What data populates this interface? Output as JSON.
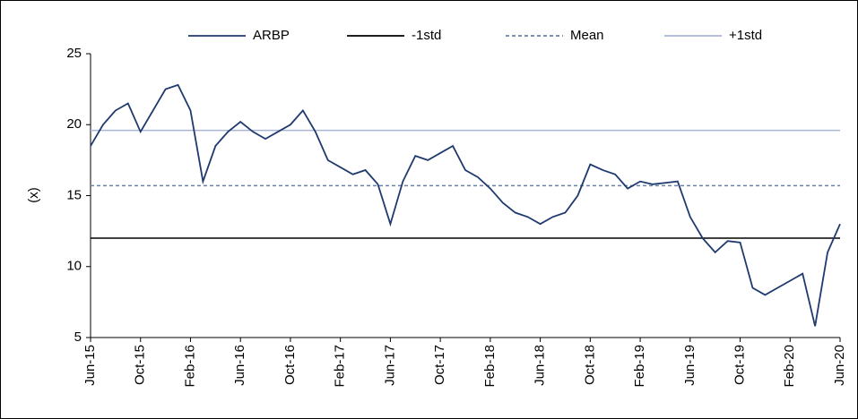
{
  "chart_data": {
    "type": "line",
    "y_label": "(x)",
    "categories": [
      "Jun-15",
      null,
      null,
      null,
      "Oct-15",
      null,
      null,
      null,
      "Feb-16",
      null,
      null,
      null,
      "Jun-16",
      null,
      null,
      null,
      "Oct-16",
      null,
      null,
      null,
      "Feb-17",
      null,
      null,
      null,
      "Jun-17",
      null,
      null,
      null,
      "Oct-17",
      null,
      null,
      null,
      "Feb-18",
      null,
      null,
      null,
      "Jun-18",
      null,
      null,
      null,
      "Oct-18",
      null,
      null,
      null,
      "Feb-19",
      null,
      null,
      null,
      "Jun-19",
      null,
      null,
      null,
      "Oct-19",
      null,
      null,
      null,
      "Feb-20",
      null,
      null,
      null,
      "Jun-20"
    ],
    "series": [
      {
        "name": "ARBP",
        "color": "#1f3a6e",
        "values": [
          18.5,
          20,
          21,
          21.5,
          19.5,
          21,
          22.5,
          22.8,
          21,
          16,
          18.5,
          19.5,
          20.2,
          19.5,
          19,
          19.5,
          20,
          21,
          19.5,
          17.5,
          17,
          16.5,
          16.8,
          15.8,
          13,
          16,
          17.8,
          17.5,
          18,
          18.5,
          16.8,
          16.3,
          15.5,
          14.5,
          13.8,
          13.5,
          13,
          13.5,
          13.8,
          15,
          17.2,
          16.8,
          16.5,
          15.5,
          16,
          15.8,
          15.9,
          16,
          13.5,
          12,
          11,
          11.8,
          11.7,
          8.5,
          8,
          8.5,
          9,
          9.5,
          5.8,
          11,
          13
        ]
      }
    ],
    "reference_lines": [
      {
        "name": "-1std",
        "value": 12,
        "color": "#000000",
        "dashed": false
      },
      {
        "name": "Mean",
        "value": 15.7,
        "color": "#6b82a8",
        "dashed": true
      },
      {
        "name": "+1std",
        "value": 19.6,
        "color": "#a9b4d6",
        "dashed": false
      }
    ],
    "ylim": [
      5,
      25
    ],
    "yticks": [
      5,
      10,
      15,
      20,
      25
    ],
    "grid": false,
    "legend": "top"
  }
}
